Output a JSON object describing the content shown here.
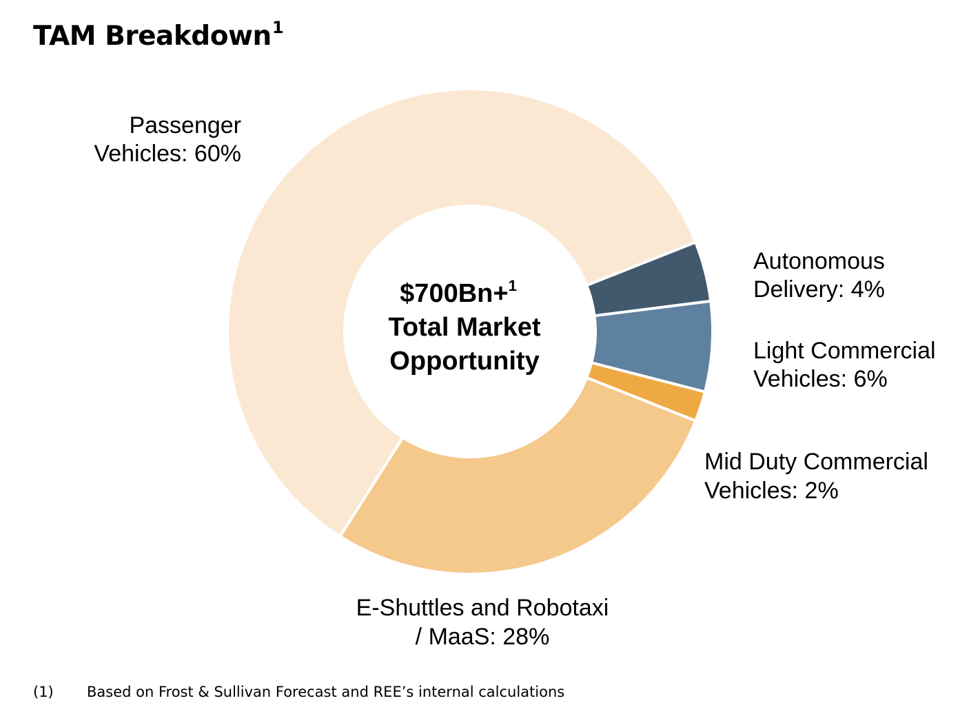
{
  "title": "TAM Breakdown",
  "title_superscript": "1",
  "chart_data": {
    "type": "pie",
    "variant": "donut",
    "center_text": {
      "line1": "$700Bn+",
      "line1_superscript": "1",
      "line2": "Total Market",
      "line3": "Opportunity"
    },
    "slices": [
      {
        "name": "Autonomous Delivery",
        "value": 4,
        "color": "#42586d",
        "label_lines": [
          "Autonomous",
          "Delivery: 4%"
        ]
      },
      {
        "name": "Light Commercial Vehicles",
        "value": 6,
        "color": "#5f81a0",
        "label_lines": [
          "Light Commercial",
          "Vehicles: 6%"
        ]
      },
      {
        "name": "Mid Duty Commercial Vehicles",
        "value": 2,
        "color": "#efa943",
        "label_lines": [
          "Mid Duty Commercial",
          "Vehicles: 2%"
        ]
      },
      {
        "name": "E-Shuttles and Robotaxi / MaaS",
        "value": 28,
        "color": "#f5c88b",
        "label_lines": [
          "E-Shuttles and Robotaxi",
          "/ MaaS: 28%"
        ]
      },
      {
        "name": "Passenger Vehicles",
        "value": 60,
        "color": "#fbe8d3",
        "label_lines": [
          "Passenger",
          "Vehicles: 60%"
        ]
      }
    ]
  },
  "footnote": {
    "number": "(1)",
    "text": "Based on Frost & Sullivan Forecast and REE’s internal calculations"
  }
}
